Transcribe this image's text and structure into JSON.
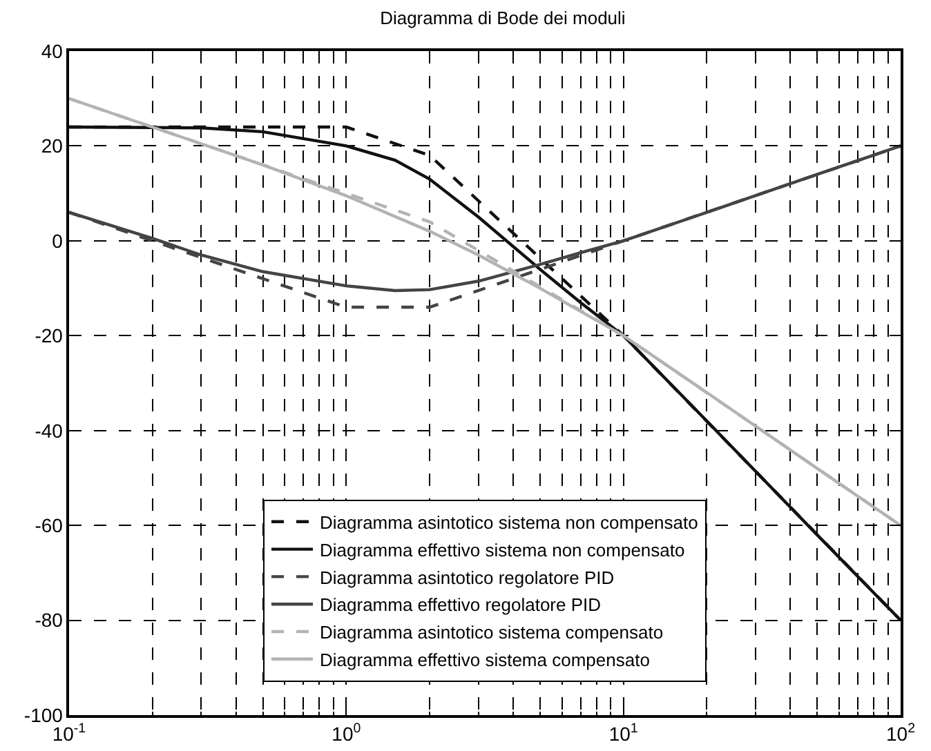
{
  "chart_data": {
    "type": "line",
    "title": "Diagramma di Bode dei moduli",
    "log": "x",
    "grid": true,
    "legend": "bottom",
    "xlim": [
      0.1,
      100
    ],
    "ylim": [
      -100,
      40
    ],
    "xticks": [
      {
        "value": 0.1,
        "label": "10$^{-1}$"
      },
      {
        "value": 1,
        "label": "10$^{0}$"
      },
      {
        "value": 10,
        "label": "10$^{1}$"
      },
      {
        "value": 100,
        "label": "10$^{2}$"
      }
    ],
    "yticks": [
      -100,
      -80,
      -60,
      -40,
      -20,
      0,
      20,
      40
    ],
    "series": [
      {
        "name": "Diagramma asintotico sistema non compensato",
        "color": "#111111",
        "line_style": "dashed",
        "x": [
          0.1,
          1,
          2,
          10,
          100
        ],
        "values": [
          24,
          24,
          18,
          -20,
          -80
        ]
      },
      {
        "name": "Diagramma effettivo sistema non compensato",
        "color": "#111111",
        "line_style": "solid",
        "x": [
          0.1,
          0.3,
          0.5,
          1,
          1.5,
          2,
          3,
          5,
          7,
          10,
          20,
          50,
          100
        ],
        "values": [
          24,
          23.8,
          23,
          20,
          17,
          13,
          5,
          -6,
          -13,
          -20,
          -38,
          -62,
          -80
        ]
      },
      {
        "name": "Diagramma asintotico regolatore PID",
        "color": "#444444",
        "line_style": "dashed",
        "x": [
          0.1,
          1,
          2,
          10,
          100
        ],
        "values": [
          6,
          -14,
          -14,
          0,
          20
        ]
      },
      {
        "name": "Diagramma effettivo regolatore PID",
        "color": "#444444",
        "line_style": "solid",
        "x": [
          0.1,
          0.2,
          0.3,
          0.5,
          1,
          1.5,
          2,
          3,
          5,
          7,
          10,
          20,
          50,
          100
        ],
        "values": [
          6,
          0.5,
          -3,
          -6.5,
          -9.5,
          -10.5,
          -10.3,
          -8.5,
          -5,
          -2.5,
          0,
          6,
          14,
          20
        ]
      },
      {
        "name": "Diagramma asintotico sistema compensato",
        "color": "#b3b3b3",
        "line_style": "dashed",
        "x": [
          0.1,
          1,
          2,
          10,
          100
        ],
        "values": [
          30,
          10,
          4,
          -20,
          -60
        ]
      },
      {
        "name": "Diagramma effettivo sistema compensato",
        "color": "#b3b3b3",
        "line_style": "solid",
        "x": [
          0.1,
          0.5,
          1,
          2,
          3,
          5,
          10,
          20,
          50,
          100
        ],
        "values": [
          30,
          16,
          9.5,
          2,
          -3,
          -10,
          -20,
          -32,
          -48,
          -60
        ]
      }
    ]
  }
}
